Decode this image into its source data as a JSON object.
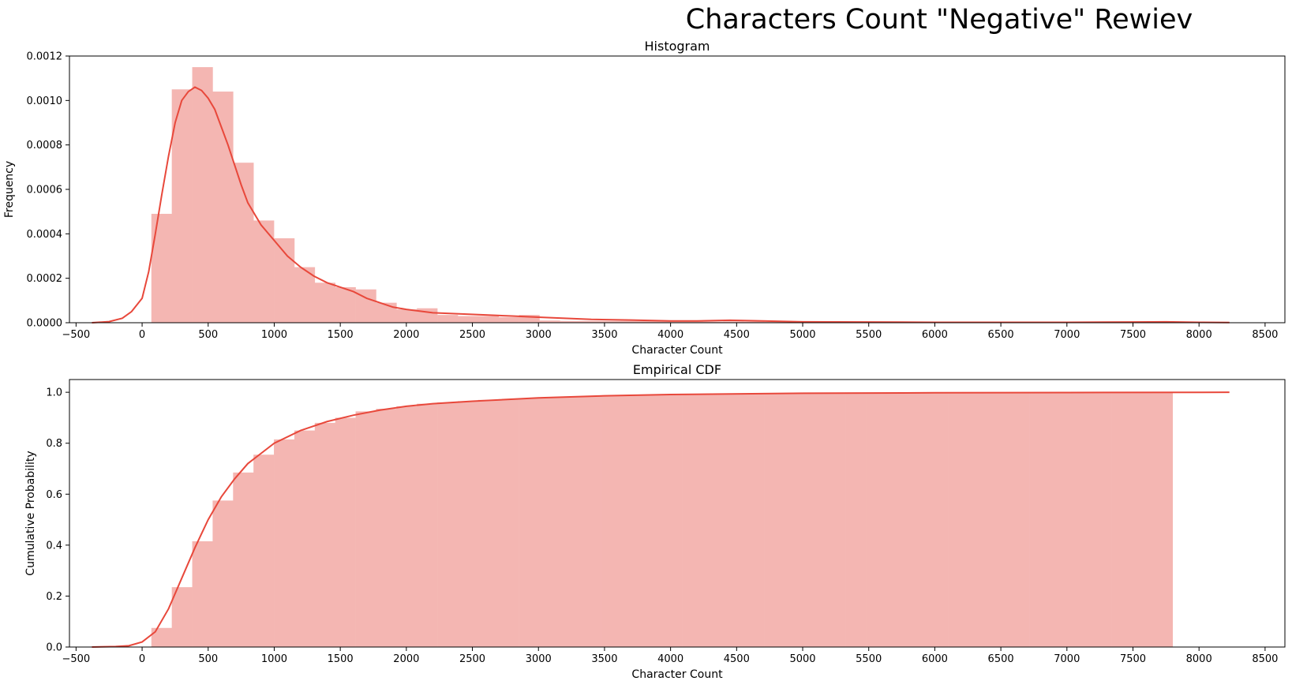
{
  "figure": {
    "suptitle": "Characters Count \"Negative\" Rewiev",
    "bar_color": "#f4b6b2",
    "line_color": "#e8483b"
  },
  "chart_data": [
    {
      "type": "bar",
      "title": "Histogram",
      "xlabel": "Character Count",
      "ylabel": "Frequency",
      "xlim": [
        -550,
        8650
      ],
      "ylim": [
        0,
        0.0012
      ],
      "x_ticks": [
        -500,
        0,
        500,
        1000,
        1500,
        2000,
        2500,
        3000,
        3500,
        4000,
        4500,
        5000,
        5500,
        6000,
        6500,
        7000,
        7500,
        8000,
        8500
      ],
      "x_tick_labels": [
        "−500",
        "0",
        "500",
        "1000",
        "1500",
        "2000",
        "2500",
        "3000",
        "3500",
        "4000",
        "4500",
        "5000",
        "5500",
        "6000",
        "6500",
        "7000",
        "7500",
        "8000",
        "8500"
      ],
      "y_ticks": [
        0,
        0.0002,
        0.0004,
        0.0006,
        0.0008,
        0.001,
        0.0012
      ],
      "y_tick_labels": [
        "0.0000",
        "0.0002",
        "0.0004",
        "0.0006",
        "0.0008",
        "0.0010",
        "0.0012"
      ],
      "bins": {
        "start": 70,
        "width": 154.6,
        "values": [
          0.00049,
          0.00105,
          0.00115,
          0.00104,
          0.00072,
          0.00046,
          0.00038,
          0.00025,
          0.00018,
          0.00016,
          0.00015,
          9e-05,
          6e-05,
          6.5e-05,
          3.5e-05,
          3e-05,
          3e-05,
          2.5e-05,
          3.5e-05,
          1e-05,
          8e-06,
          8e-06,
          8e-06,
          8e-06,
          8e-06,
          6e-06,
          6e-06,
          5e-06,
          6e-06,
          5e-06,
          4e-06,
          3e-06,
          3e-06,
          3e-06,
          3e-06,
          3e-06,
          2e-06,
          2e-06,
          2e-06,
          2e-06,
          2e-06,
          2e-06,
          1e-06,
          1e-06,
          1e-06,
          1e-06,
          1e-06,
          1e-06,
          1e-06,
          1e-06
        ]
      },
      "kde": {
        "x": [
          -380,
          -250,
          -150,
          -80,
          0,
          50,
          100,
          150,
          200,
          250,
          300,
          350,
          400,
          450,
          500,
          550,
          600,
          650,
          700,
          750,
          800,
          900,
          1000,
          1100,
          1200,
          1300,
          1400,
          1500,
          1600,
          1700,
          1800,
          1900,
          2000,
          2200,
          2400,
          2600,
          2800,
          3000,
          3200,
          3400,
          3700,
          4000,
          4200,
          4450,
          4700,
          5000,
          5500,
          6000,
          6500,
          7000,
          7500,
          7750,
          8000,
          8230
        ],
        "y": [
          0,
          5e-06,
          2e-05,
          5e-05,
          0.00011,
          0.00023,
          0.0004,
          0.00058,
          0.00075,
          0.0009,
          0.001,
          0.00104,
          0.00106,
          0.001045,
          0.00101,
          0.00096,
          0.00088,
          0.0008,
          0.00071,
          0.00062,
          0.00054,
          0.00044,
          0.00037,
          0.0003,
          0.00025,
          0.00021,
          0.00018,
          0.00016,
          0.00014,
          0.00011,
          9e-05,
          7e-05,
          6e-05,
          4.5e-05,
          4e-05,
          3.5e-05,
          3e-05,
          2.5e-05,
          2e-05,
          1.5e-05,
          1.2e-05,
          8e-06,
          8e-06,
          1.1e-05,
          8e-06,
          4e-06,
          3e-06,
          2e-06,
          2e-06,
          2e-06,
          3e-06,
          4e-06,
          2e-06,
          1e-06
        ]
      }
    },
    {
      "type": "bar",
      "title": "Empirical CDF",
      "xlabel": "Character Count",
      "ylabel": "Cumulative Probability",
      "xlim": [
        -550,
        8650
      ],
      "ylim": [
        0,
        1.05
      ],
      "x_ticks": [
        -500,
        0,
        500,
        1000,
        1500,
        2000,
        2500,
        3000,
        3500,
        4000,
        4500,
        5000,
        5500,
        6000,
        6500,
        7000,
        7500,
        8000,
        8500
      ],
      "x_tick_labels": [
        "−500",
        "0",
        "500",
        "1000",
        "1500",
        "2000",
        "2500",
        "3000",
        "3500",
        "4000",
        "4500",
        "5000",
        "5500",
        "6000",
        "6500",
        "7000",
        "7500",
        "8000",
        "8500"
      ],
      "y_ticks": [
        0,
        0.2,
        0.4,
        0.6,
        0.8,
        1.0
      ],
      "y_tick_labels": [
        "0.0",
        "0.2",
        "0.4",
        "0.6",
        "0.8",
        "1.0"
      ],
      "bins": {
        "start": 70,
        "width": 154.6,
        "values": [
          0.075,
          0.235,
          0.415,
          0.575,
          0.685,
          0.755,
          0.815,
          0.85,
          0.88,
          0.9,
          0.925,
          0.935,
          0.945,
          0.955,
          0.96,
          0.965,
          0.97,
          0.973,
          0.977,
          0.98,
          0.982,
          0.984,
          0.986,
          0.988,
          0.99,
          0.991,
          0.992,
          0.993,
          0.994,
          0.995,
          0.996,
          0.996,
          0.997,
          0.997,
          0.998,
          0.998,
          0.998,
          0.999,
          0.999,
          0.999,
          0.999,
          0.999,
          1.0,
          1.0,
          1.0,
          1.0,
          1.0,
          1.0,
          1.0,
          1.0
        ]
      },
      "kde": {
        "x": [
          -380,
          -200,
          -100,
          0,
          100,
          200,
          300,
          400,
          500,
          600,
          700,
          800,
          900,
          1000,
          1200,
          1400,
          1600,
          1800,
          2000,
          2200,
          2500,
          3000,
          3500,
          4000,
          5000,
          6000,
          7000,
          8230
        ],
        "y": [
          0,
          0.002,
          0.005,
          0.02,
          0.06,
          0.15,
          0.27,
          0.39,
          0.5,
          0.59,
          0.66,
          0.72,
          0.76,
          0.8,
          0.85,
          0.885,
          0.91,
          0.93,
          0.945,
          0.955,
          0.965,
          0.978,
          0.986,
          0.991,
          0.996,
          0.998,
          0.999,
          1.0
        ]
      }
    }
  ]
}
